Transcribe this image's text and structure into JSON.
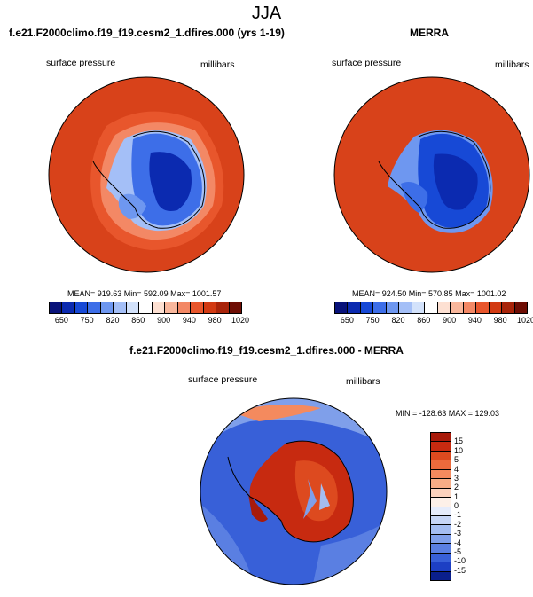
{
  "main_title": "JJA",
  "panel1": {
    "title": "f.e21.F2000climo.f19_f19.cesm2_1.dfires.000 (yrs 1-19)",
    "left_label": "surface pressure",
    "right_label": "millibars",
    "stats": "MEAN= 919.63  Min= 592.09  Max= 1001.57"
  },
  "panel2": {
    "title": "MERRA",
    "left_label": "surface pressure",
    "right_label": "millibars",
    "stats": "MEAN= 924.50  Min= 570.85  Max= 1001.02"
  },
  "panel3": {
    "title": "f.e21.F2000climo.f19_f19.cesm2_1.dfires.000 - MERRA",
    "left_label": "surface pressure",
    "right_label": "millibars",
    "stats": "MIN = -128.63 MAX = 129.03"
  },
  "colorbar_top": {
    "colors": [
      "#08127a",
      "#0b2ab0",
      "#1749d6",
      "#3d6ee8",
      "#6e97f0",
      "#a4bff7",
      "#d3e2fb",
      "#ffffff",
      "#fde0d2",
      "#f9b79c",
      "#f38865",
      "#e8562c",
      "#d23a12",
      "#a8240a",
      "#6e0d04"
    ],
    "labels": [
      "650",
      "750",
      "820",
      "860",
      "900",
      "940",
      "980",
      "1020"
    ]
  },
  "colorbar_diff": {
    "colors": [
      "#a81a0a",
      "#c72a10",
      "#dd4a1f",
      "#ec6a3c",
      "#f48a5e",
      "#f8ad86",
      "#fcd2bd",
      "#fdf0e8",
      "#e6ecfb",
      "#c7d6f6",
      "#a4bdf1",
      "#7f9fea",
      "#5a7fe2",
      "#3860d8",
      "#1d3fc4",
      "#0a1f8c"
    ],
    "labels": [
      "15",
      "10",
      "5",
      "4",
      "3",
      "2",
      "1",
      "0",
      "-1",
      "-2",
      "-3",
      "-4",
      "-5",
      "-10",
      "-15"
    ]
  }
}
